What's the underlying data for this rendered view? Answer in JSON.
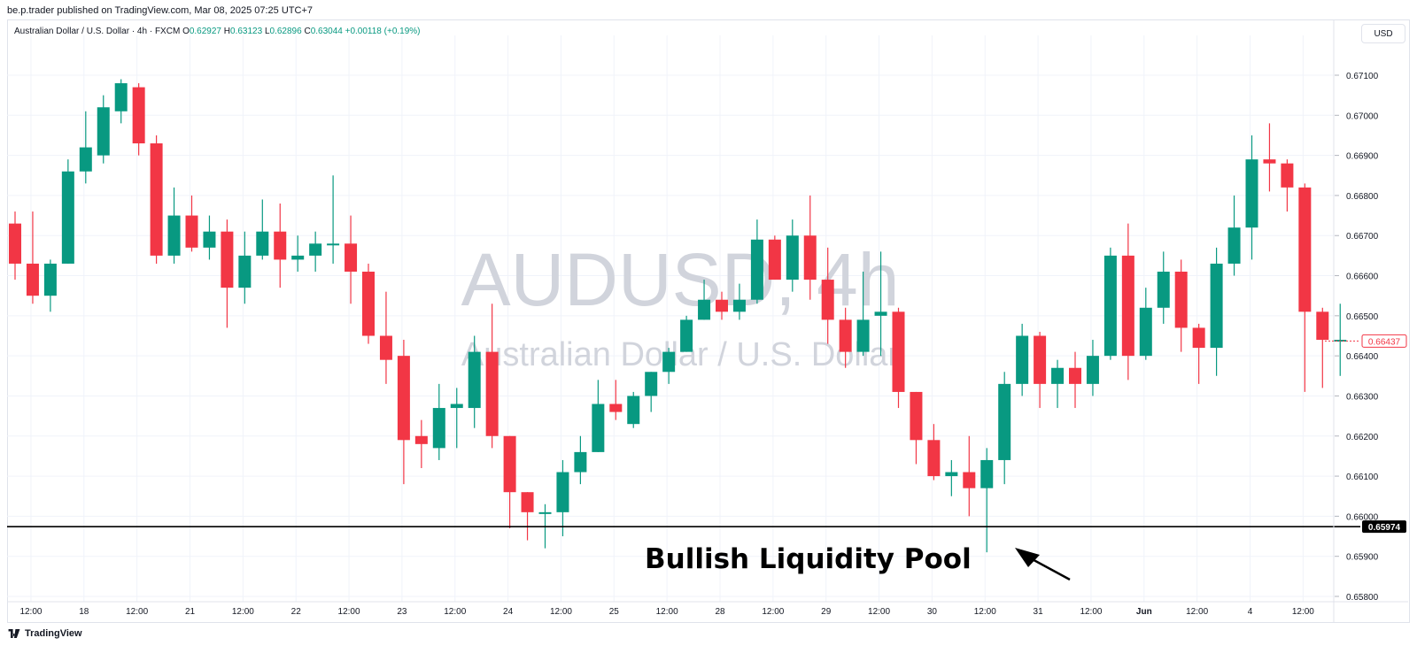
{
  "header": {
    "published_line": "be.p.trader published on TradingView.com, Mar 08, 2025 07:25 UTC+7",
    "currency_button": "USD"
  },
  "symbol_bar": {
    "description": "Australian Dollar / U.S. Dollar · 4h · FXCM",
    "open_label": "O",
    "open_value": "0.62927",
    "high_label": "H",
    "high_value": "0.63123",
    "low_label": "L",
    "low_value": "0.62896",
    "close_label": "C",
    "close_value": "0.63044",
    "change": "+0.00118 (+0.19%)"
  },
  "watermark": {
    "ticker": "AUDUSD, 4h",
    "name": "Australian Dollar / U.S. Dollar"
  },
  "annotations": {
    "level_text": "Bullish Liquidity Pool",
    "level_price": 0.65974,
    "level_label": "0.65974",
    "last_price": 0.66437,
    "last_price_label": "0.66437"
  },
  "footer": {
    "brand": "TradingView"
  },
  "colors": {
    "up": "#089981",
    "down": "#f23645",
    "grid": "#f0f3fa",
    "text": "#131722"
  },
  "chart_data": {
    "type": "candlestick",
    "y_axis": {
      "ticks": [
        "0.67100",
        "0.67000",
        "0.66900",
        "0.66800",
        "0.66700",
        "0.66600",
        "0.66500",
        "0.66400",
        "0.66300",
        "0.66200",
        "0.66100",
        "0.66000",
        "0.65900",
        "0.65800"
      ],
      "range": [
        0.6577,
        0.6723
      ]
    },
    "x_axis": {
      "ticks": [
        {
          "label": "12:00",
          "index": 0.9
        },
        {
          "label": "18",
          "index": 3.9
        },
        {
          "label": "12:00",
          "index": 6.9
        },
        {
          "label": "21",
          "index": 9.9
        },
        {
          "label": "12:00",
          "index": 12.9
        },
        {
          "label": "22",
          "index": 15.9
        },
        {
          "label": "12:00",
          "index": 18.9
        },
        {
          "label": "23",
          "index": 21.9
        },
        {
          "label": "12:00",
          "index": 24.9
        },
        {
          "label": "24",
          "index": 27.9
        },
        {
          "label": "12:00",
          "index": 30.9
        },
        {
          "label": "25",
          "index": 33.9
        },
        {
          "label": "12:00",
          "index": 36.9
        },
        {
          "label": "28",
          "index": 39.9
        },
        {
          "label": "12:00",
          "index": 42.9
        },
        {
          "label": "29",
          "index": 45.9
        },
        {
          "label": "12:00",
          "index": 48.9
        },
        {
          "label": "30",
          "index": 51.9
        },
        {
          "label": "12:00",
          "index": 54.9
        },
        {
          "label": "31",
          "index": 57.9
        },
        {
          "label": "12:00",
          "index": 60.9
        },
        {
          "label": "Jun",
          "index": 63.9
        },
        {
          "label": "12:00",
          "index": 66.9
        },
        {
          "label": "4",
          "index": 69.9
        },
        {
          "label": "12:00",
          "index": 72.9
        }
      ]
    },
    "candles": [
      {
        "o": 0.6673,
        "h": 0.6676,
        "l": 0.6659,
        "c": 0.6663
      },
      {
        "o": 0.6663,
        "h": 0.6676,
        "l": 0.6653,
        "c": 0.6655
      },
      {
        "o": 0.6655,
        "h": 0.6664,
        "l": 0.6651,
        "c": 0.6663
      },
      {
        "o": 0.6663,
        "h": 0.6689,
        "l": 0.6663,
        "c": 0.6686
      },
      {
        "o": 0.6686,
        "h": 0.6701,
        "l": 0.6683,
        "c": 0.6692
      },
      {
        "o": 0.669,
        "h": 0.6705,
        "l": 0.6688,
        "c": 0.6702
      },
      {
        "o": 0.6701,
        "h": 0.6709,
        "l": 0.6698,
        "c": 0.6708
      },
      {
        "o": 0.6707,
        "h": 0.6708,
        "l": 0.669,
        "c": 0.6693
      },
      {
        "o": 0.6693,
        "h": 0.6695,
        "l": 0.6663,
        "c": 0.6665
      },
      {
        "o": 0.6665,
        "h": 0.6682,
        "l": 0.6663,
        "c": 0.6675
      },
      {
        "o": 0.6675,
        "h": 0.668,
        "l": 0.6666,
        "c": 0.6667
      },
      {
        "o": 0.6667,
        "h": 0.6675,
        "l": 0.6664,
        "c": 0.6671
      },
      {
        "o": 0.6671,
        "h": 0.6674,
        "l": 0.6647,
        "c": 0.6657
      },
      {
        "o": 0.6657,
        "h": 0.6671,
        "l": 0.6653,
        "c": 0.6665
      },
      {
        "o": 0.6665,
        "h": 0.6679,
        "l": 0.6664,
        "c": 0.6671
      },
      {
        "o": 0.6671,
        "h": 0.6678,
        "l": 0.6657,
        "c": 0.6664
      },
      {
        "o": 0.6664,
        "h": 0.667,
        "l": 0.6661,
        "c": 0.6665
      },
      {
        "o": 0.6665,
        "h": 0.6671,
        "l": 0.6661,
        "c": 0.6668
      },
      {
        "o": 0.6668,
        "h": 0.6685,
        "l": 0.6663,
        "c": 0.6668
      },
      {
        "o": 0.6668,
        "h": 0.6675,
        "l": 0.6653,
        "c": 0.6661
      },
      {
        "o": 0.6661,
        "h": 0.6663,
        "l": 0.6643,
        "c": 0.6645
      },
      {
        "o": 0.6645,
        "h": 0.6656,
        "l": 0.6633,
        "c": 0.6639
      },
      {
        "o": 0.664,
        "h": 0.6644,
        "l": 0.6608,
        "c": 0.6619
      },
      {
        "o": 0.662,
        "h": 0.6624,
        "l": 0.6612,
        "c": 0.6618
      },
      {
        "o": 0.6617,
        "h": 0.6633,
        "l": 0.6614,
        "c": 0.6627
      },
      {
        "o": 0.6627,
        "h": 0.6632,
        "l": 0.6617,
        "c": 0.6628
      },
      {
        "o": 0.6627,
        "h": 0.6645,
        "l": 0.6622,
        "c": 0.6641
      },
      {
        "o": 0.6641,
        "h": 0.6653,
        "l": 0.6617,
        "c": 0.662
      },
      {
        "o": 0.662,
        "h": 0.662,
        "l": 0.6597,
        "c": 0.6606
      },
      {
        "o": 0.6606,
        "h": 0.6606,
        "l": 0.6594,
        "c": 0.6601
      },
      {
        "o": 0.6601,
        "h": 0.6603,
        "l": 0.6592,
        "c": 0.6601
      },
      {
        "o": 0.6601,
        "h": 0.6614,
        "l": 0.6595,
        "c": 0.6611
      },
      {
        "o": 0.6611,
        "h": 0.662,
        "l": 0.6608,
        "c": 0.6616
      },
      {
        "o": 0.6616,
        "h": 0.6634,
        "l": 0.6616,
        "c": 0.6628
      },
      {
        "o": 0.6628,
        "h": 0.6634,
        "l": 0.6624,
        "c": 0.6626
      },
      {
        "o": 0.6623,
        "h": 0.6631,
        "l": 0.6622,
        "c": 0.663
      },
      {
        "o": 0.663,
        "h": 0.6636,
        "l": 0.6626,
        "c": 0.6636
      },
      {
        "o": 0.6636,
        "h": 0.6642,
        "l": 0.6633,
        "c": 0.6641
      },
      {
        "o": 0.6641,
        "h": 0.665,
        "l": 0.6641,
        "c": 0.6649
      },
      {
        "o": 0.6649,
        "h": 0.6659,
        "l": 0.6649,
        "c": 0.6654
      },
      {
        "o": 0.6654,
        "h": 0.6656,
        "l": 0.6649,
        "c": 0.6651
      },
      {
        "o": 0.6651,
        "h": 0.6658,
        "l": 0.6649,
        "c": 0.6654
      },
      {
        "o": 0.6654,
        "h": 0.6674,
        "l": 0.6653,
        "c": 0.6669
      },
      {
        "o": 0.6669,
        "h": 0.667,
        "l": 0.6659,
        "c": 0.6659
      },
      {
        "o": 0.6659,
        "h": 0.6674,
        "l": 0.6656,
        "c": 0.667
      },
      {
        "o": 0.667,
        "h": 0.668,
        "l": 0.6654,
        "c": 0.6659
      },
      {
        "o": 0.6659,
        "h": 0.6667,
        "l": 0.6643,
        "c": 0.6649
      },
      {
        "o": 0.6649,
        "h": 0.6652,
        "l": 0.6637,
        "c": 0.6641
      },
      {
        "o": 0.6641,
        "h": 0.6661,
        "l": 0.664,
        "c": 0.6649
      },
      {
        "o": 0.665,
        "h": 0.6666,
        "l": 0.664,
        "c": 0.6651
      },
      {
        "o": 0.6651,
        "h": 0.6652,
        "l": 0.6627,
        "c": 0.6631
      },
      {
        "o": 0.6631,
        "h": 0.6631,
        "l": 0.6613,
        "c": 0.6619
      },
      {
        "o": 0.6619,
        "h": 0.6623,
        "l": 0.6609,
        "c": 0.661
      },
      {
        "o": 0.661,
        "h": 0.6614,
        "l": 0.6605,
        "c": 0.6611
      },
      {
        "o": 0.6611,
        "h": 0.662,
        "l": 0.66,
        "c": 0.6607
      },
      {
        "o": 0.6607,
        "h": 0.6617,
        "l": 0.6591,
        "c": 0.6614
      },
      {
        "o": 0.6614,
        "h": 0.6636,
        "l": 0.6608,
        "c": 0.6633
      },
      {
        "o": 0.6633,
        "h": 0.6648,
        "l": 0.663,
        "c": 0.6645
      },
      {
        "o": 0.6645,
        "h": 0.6646,
        "l": 0.6627,
        "c": 0.6633
      },
      {
        "o": 0.6633,
        "h": 0.6639,
        "l": 0.6627,
        "c": 0.6637
      },
      {
        "o": 0.6637,
        "h": 0.6641,
        "l": 0.6627,
        "c": 0.6633
      },
      {
        "o": 0.6633,
        "h": 0.6644,
        "l": 0.663,
        "c": 0.664
      },
      {
        "o": 0.664,
        "h": 0.6667,
        "l": 0.6639,
        "c": 0.6665
      },
      {
        "o": 0.6665,
        "h": 0.6673,
        "l": 0.6634,
        "c": 0.664
      },
      {
        "o": 0.664,
        "h": 0.6657,
        "l": 0.6639,
        "c": 0.6652
      },
      {
        "o": 0.6652,
        "h": 0.6666,
        "l": 0.6648,
        "c": 0.6661
      },
      {
        "o": 0.6661,
        "h": 0.6664,
        "l": 0.6641,
        "c": 0.6647
      },
      {
        "o": 0.6647,
        "h": 0.6648,
        "l": 0.6633,
        "c": 0.6642
      },
      {
        "o": 0.6642,
        "h": 0.6667,
        "l": 0.6635,
        "c": 0.6663
      },
      {
        "o": 0.6663,
        "h": 0.668,
        "l": 0.666,
        "c": 0.6672
      },
      {
        "o": 0.6672,
        "h": 0.6695,
        "l": 0.6664,
        "c": 0.6689
      },
      {
        "o": 0.6689,
        "h": 0.6698,
        "l": 0.6681,
        "c": 0.6688
      },
      {
        "o": 0.6688,
        "h": 0.6689,
        "l": 0.6676,
        "c": 0.6682
      },
      {
        "o": 0.6682,
        "h": 0.6683,
        "l": 0.6631,
        "c": 0.6651
      },
      {
        "o": 0.6651,
        "h": 0.6652,
        "l": 0.6632,
        "c": 0.6644
      },
      {
        "o": 0.6644,
        "h": 0.6653,
        "l": 0.6635,
        "c": 0.6644
      }
    ]
  }
}
